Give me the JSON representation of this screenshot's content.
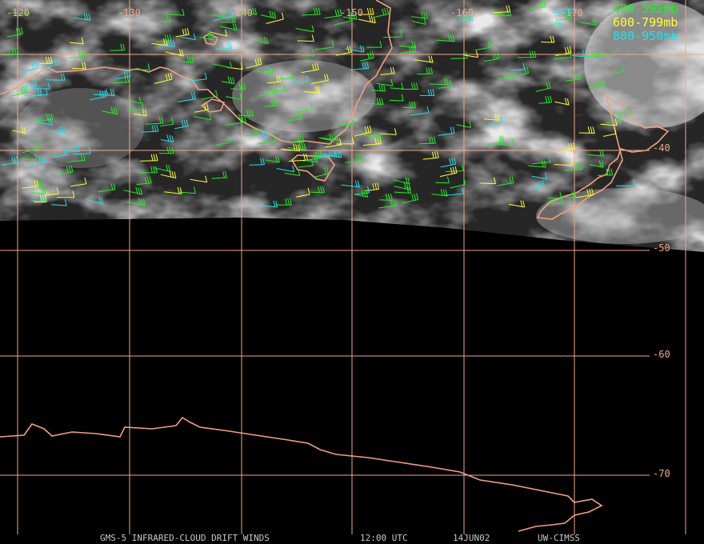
{
  "map": {
    "longitude_labels": [
      "-120",
      "-130",
      "-140",
      "-150",
      "-160",
      "-170"
    ],
    "latitude_labels": [
      "-40",
      "-50",
      "-60",
      "-70"
    ],
    "legend": [
      {
        "label": "400-599mb",
        "color": "#22ee22"
      },
      {
        "label": "600-799mb",
        "color": "#ffff33"
      },
      {
        "label": "800-950mb",
        "color": "#22e0ee"
      }
    ],
    "footer": {
      "title": "GMS-5 INFRARED-CLOUD DRIFT WINDS",
      "time": "12:00 UTC",
      "date": "14JUN02",
      "source": "UW-CIMSS"
    }
  }
}
